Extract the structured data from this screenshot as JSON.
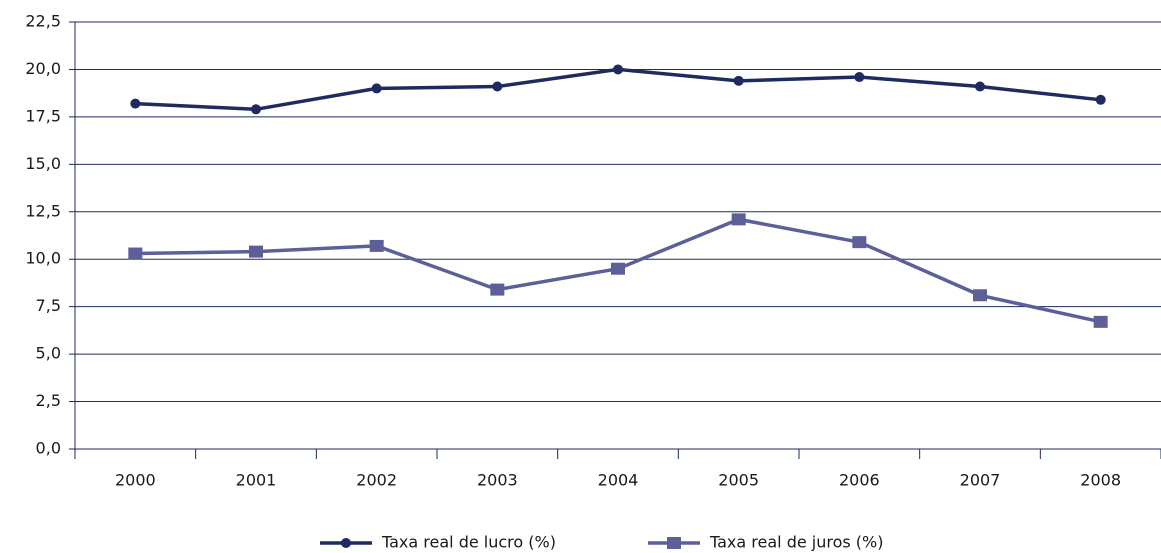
{
  "chart_data": {
    "type": "line",
    "categories": [
      "2000",
      "2001",
      "2002",
      "2003",
      "2004",
      "2005",
      "2006",
      "2007",
      "2008"
    ],
    "series": [
      {
        "name": "Taxa real de lucro (%)",
        "color": "#1f2a5e",
        "marker": "circle",
        "values": [
          18.2,
          17.9,
          19.0,
          19.1,
          20.0,
          19.4,
          19.6,
          19.1,
          18.4
        ]
      },
      {
        "name": "Taxa real de juros (%)",
        "color": "#5d5f98",
        "marker": "square",
        "values": [
          10.3,
          10.4,
          10.7,
          8.4,
          9.5,
          12.1,
          10.9,
          8.1,
          6.7
        ]
      }
    ],
    "ylim": [
      0,
      22.5
    ],
    "yticks": [
      {
        "value": 0,
        "label": "0,0"
      },
      {
        "value": 2.5,
        "label": "2,5"
      },
      {
        "value": 5,
        "label": "5,0"
      },
      {
        "value": 7.5,
        "label": "7,5"
      },
      {
        "value": 10,
        "label": "10,0"
      },
      {
        "value": 12.5,
        "label": "12,5"
      },
      {
        "value": 15,
        "label": "15,0"
      },
      {
        "value": 17.5,
        "label": "17,5"
      },
      {
        "value": 20,
        "label": "20,0"
      },
      {
        "value": 22.5,
        "label": "22,5"
      }
    ],
    "grid": true,
    "legend": "bottom"
  }
}
